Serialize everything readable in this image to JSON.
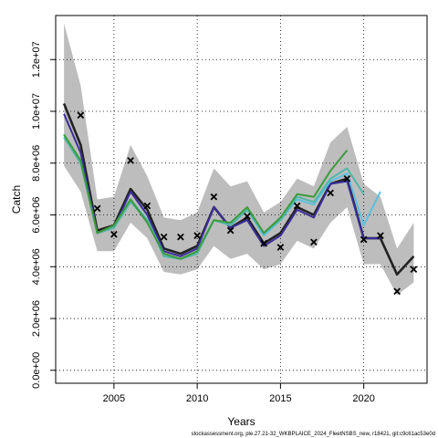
{
  "chart_data": {
    "type": "line",
    "xlabel": "Years",
    "ylabel": "Catch",
    "caption": "stockassessment.org, ple.27.21-32_WKBPLAICE_2024_FleetNSBS_new, r18421, git:c9c61ac53e0d",
    "xlim": [
      2001.5,
      2023.8
    ],
    "ylim": [
      -500000,
      13700000
    ],
    "xticks": [
      2005,
      2010,
      2015,
      2020
    ],
    "yticks": [
      0,
      2000000,
      4000000,
      6000000,
      8000000,
      10000000,
      12000000
    ],
    "ytick_labels": [
      "0.0e+00",
      "2.0e+06",
      "4.0e+06",
      "6.0e+06",
      "8.0e+06",
      "1.0e+07",
      "1.2e+07"
    ],
    "grid": true,
    "confidence_band": {
      "x": [
        2002,
        2003,
        2004,
        2005,
        2006,
        2007,
        2008,
        2009,
        2010,
        2011,
        2012,
        2013,
        2014,
        2015,
        2016,
        2017,
        2018,
        2019,
        2020,
        2021,
        2022,
        2023
      ],
      "upper": [
        13400000,
        11000000,
        6600000,
        6700000,
        8700000,
        7500000,
        5900000,
        5800000,
        6100000,
        7800000,
        7100000,
        7300000,
        6100000,
        6500000,
        7400000,
        7100000,
        8800000,
        9400000,
        7200000,
        6700000,
        4700000,
        5700000
      ],
      "lower": [
        7900000,
        6900000,
        4600000,
        4600000,
        5700000,
        5100000,
        3800000,
        3700000,
        3900000,
        4800000,
        4300000,
        4500000,
        3900000,
        4100000,
        5000000,
        4700000,
        5700000,
        6300000,
        4100000,
        4100000,
        2900000,
        3400000
      ]
    },
    "series": [
      {
        "color": "#222222",
        "x": [
          2002,
          2003,
          2004,
          2005,
          2006,
          2007,
          2008,
          2009,
          2010,
          2011,
          2012,
          2013,
          2014,
          2015,
          2016,
          2017,
          2018,
          2019,
          2020,
          2021,
          2022,
          2023
        ],
        "values": [
          10300000,
          8700000,
          5400000,
          5600000,
          7000000,
          6200000,
          4700000,
          4500000,
          4800000,
          6300000,
          5500000,
          5900000,
          4900000,
          5300000,
          6300000,
          6000000,
          7200000,
          7400000,
          5100000,
          5100000,
          3700000,
          4400000
        ]
      },
      {
        "color": "#3b2d9a",
        "x": [
          2002,
          2003,
          2004,
          2005,
          2006,
          2007,
          2008,
          2009,
          2010,
          2011,
          2012,
          2013,
          2014,
          2015,
          2016,
          2017,
          2018,
          2019,
          2020,
          2021
        ],
        "values": [
          9900000,
          8400000,
          5300000,
          5500000,
          6900000,
          6000000,
          4600000,
          4400000,
          4700000,
          6300000,
          5500000,
          5800000,
          4800000,
          5200000,
          6200000,
          5900000,
          7200000,
          7300000,
          5100000,
          5100000
        ]
      },
      {
        "color": "#5bc0e0",
        "x": [
          2002,
          2003,
          2004,
          2005,
          2006,
          2007,
          2008,
          2009,
          2010,
          2011,
          2012,
          2013,
          2014,
          2015,
          2016,
          2017,
          2018,
          2019,
          2020,
          2021
        ],
        "values": [
          9100000,
          8000000,
          5300000,
          5500000,
          6600000,
          5800000,
          4500000,
          4300000,
          4600000,
          5800000,
          5600000,
          6200000,
          5200000,
          5800000,
          6600000,
          6400000,
          7300000,
          7600000,
          5600000,
          6900000
        ]
      },
      {
        "color": "#50b8a8",
        "x": [
          2002,
          2003,
          2004,
          2005,
          2006,
          2007,
          2008,
          2009,
          2010,
          2011,
          2012,
          2013,
          2014,
          2015,
          2016,
          2017,
          2018,
          2019,
          2020
        ],
        "values": [
          9000000,
          8000000,
          5300000,
          5500000,
          6500000,
          5800000,
          4400000,
          4300000,
          4500000,
          5800000,
          5600000,
          6200000,
          5300000,
          5800000,
          6700000,
          6500000,
          7400000,
          7800000,
          6800000
        ]
      },
      {
        "color": "#3c9a3c",
        "x": [
          2002,
          2003,
          2004,
          2005,
          2006,
          2007,
          2008,
          2009,
          2010,
          2011,
          2012,
          2013,
          2014,
          2015,
          2016,
          2017,
          2018,
          2019
        ],
        "values": [
          9100000,
          8100000,
          5300000,
          5600000,
          6600000,
          5700000,
          4500000,
          4300000,
          4600000,
          5800000,
          5700000,
          6300000,
          5300000,
          5900000,
          6800000,
          6700000,
          7700000,
          8500000
        ]
      }
    ],
    "observed": {
      "x": [
        2003,
        2004,
        2005,
        2006,
        2007,
        2008,
        2009,
        2010,
        2011,
        2012,
        2013,
        2014,
        2015,
        2016,
        2017,
        2018,
        2019,
        2020,
        2021,
        2022,
        2023
      ],
      "values": [
        9850000,
        6250000,
        5250000,
        8100000,
        6350000,
        5150000,
        5150000,
        5200000,
        6700000,
        5400000,
        5950000,
        4900000,
        4750000,
        6350000,
        4950000,
        6850000,
        7400000,
        5050000,
        5200000,
        3050000,
        3900000
      ]
    }
  }
}
